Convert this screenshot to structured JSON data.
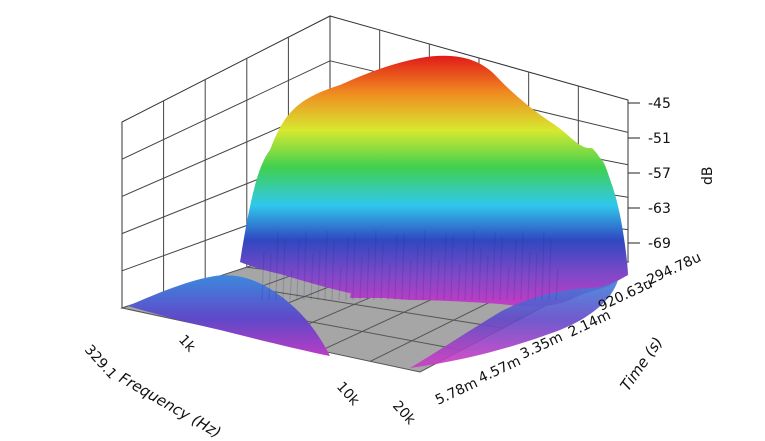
{
  "chart_data": {
    "type": "waterfall-3d-surface",
    "title": "",
    "x_axis": {
      "label": "Frequency (Hz)",
      "scale": "log",
      "ticks": [
        "329.1",
        "1k",
        "10k",
        "20k"
      ],
      "range": [
        329.1,
        20000
      ]
    },
    "y_axis": {
      "label": "Time (s)",
      "ticks": [
        "-294.78u",
        "920.63u",
        "2.14m",
        "3.35m",
        "4.57m",
        "5.78m"
      ]
    },
    "z_axis": {
      "label": "dB",
      "ticks": [
        "-45",
        "-51",
        "-57",
        "-63",
        "-69"
      ],
      "range": [
        -75,
        -42
      ]
    },
    "colormap": [
      "#c040c0",
      "#3050c0",
      "#30c0e8",
      "#40d040",
      "#e8e830",
      "#f08020",
      "#e02020"
    ],
    "floor_color": "#a8a8a8",
    "grid": true,
    "slices": [
      {
        "time": "-294.78u",
        "peak_db": -44.5
      },
      {
        "time": "920.63u",
        "peak_db": -46
      },
      {
        "time": "2.14m",
        "peak_db": -53
      },
      {
        "time": "3.35m",
        "peak_db": -62
      },
      {
        "time": "4.57m",
        "peak_db": -68
      },
      {
        "time": "5.78m",
        "peak_db": -71
      }
    ]
  }
}
